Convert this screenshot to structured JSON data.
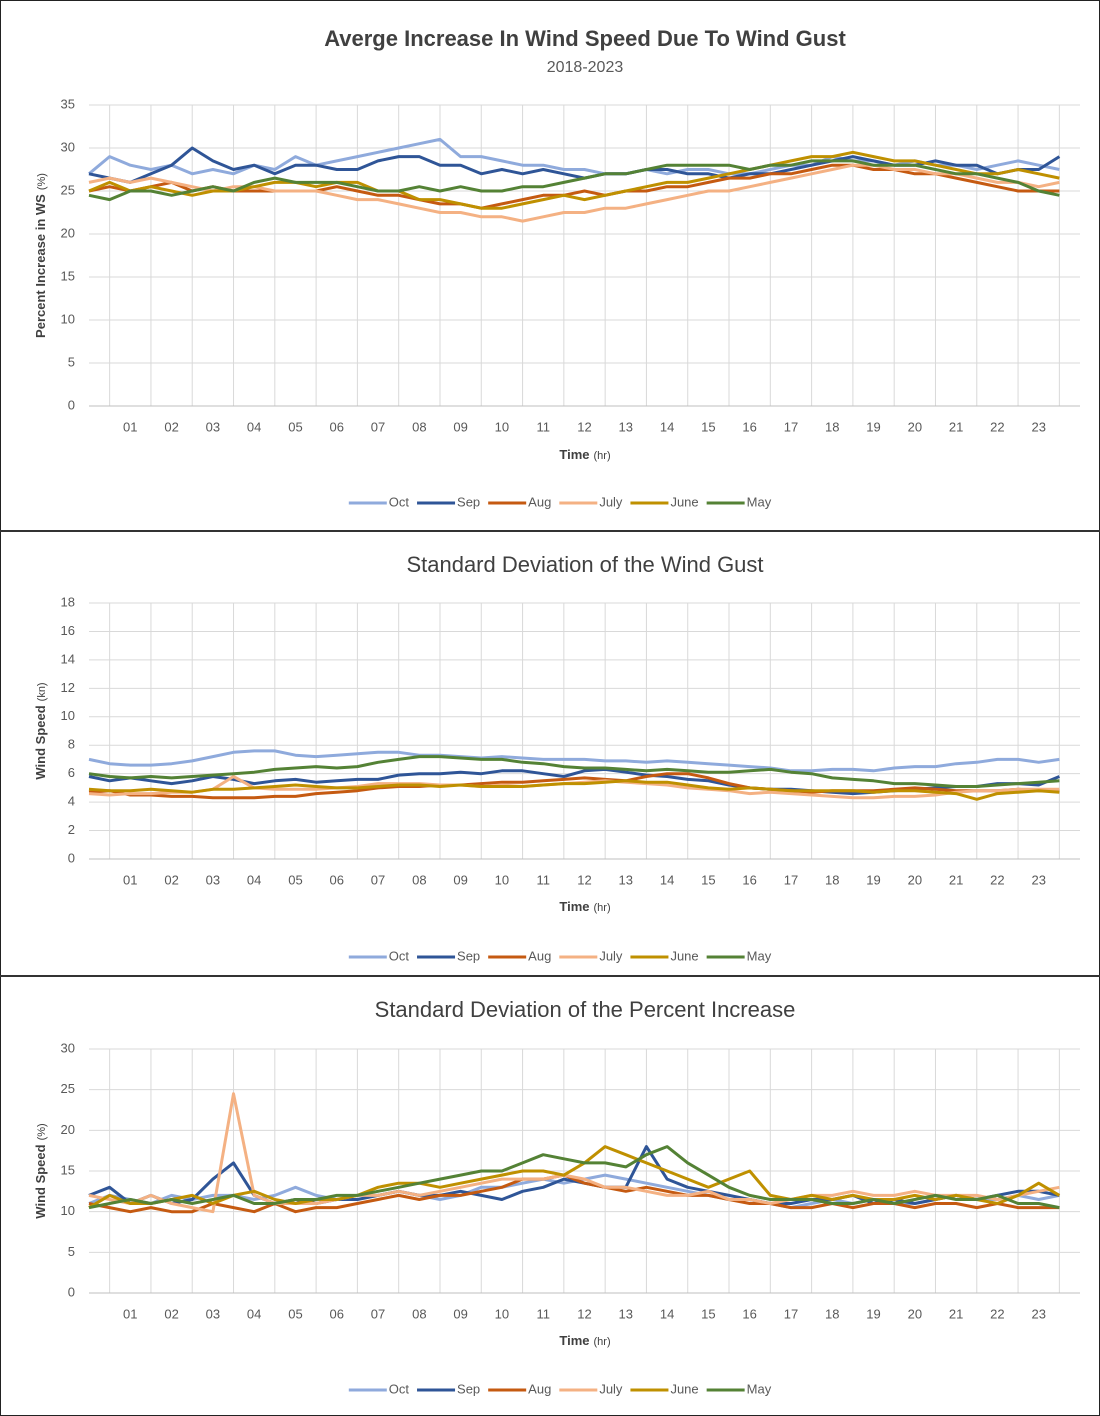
{
  "chart_data": [
    {
      "type": "line",
      "title": "Averge Increase In Wind Speed Due To Wind Gust",
      "subtitle": "2018-2023",
      "x_label": "Time",
      "x_unit": "(hr)",
      "y_label": "Percent Increase in WS",
      "y_unit": "(%)",
      "categories": [
        null,
        null,
        "01",
        null,
        "02",
        null,
        "03",
        null,
        "04",
        null,
        "05",
        null,
        "06",
        null,
        "07",
        null,
        "08",
        null,
        "09",
        null,
        "10",
        null,
        "11",
        null,
        "12",
        null,
        "13",
        null,
        "14",
        null,
        "15",
        null,
        "16",
        null,
        "17",
        null,
        "18",
        null,
        "19",
        null,
        "20",
        null,
        "21",
        null,
        "22",
        null,
        "23",
        null
      ],
      "ylim": [
        0,
        35
      ],
      "yticks": [
        0,
        5,
        10,
        15,
        20,
        25,
        30,
        35
      ],
      "grid": true,
      "legend": "bottom",
      "series": [
        {
          "name": "Oct",
          "color": "#8faadc",
          "values": [
            27,
            29,
            28,
            27.5,
            28,
            27,
            27.5,
            27,
            28,
            27.5,
            29,
            28,
            28.5,
            29,
            29.5,
            30,
            30.5,
            31,
            29,
            29,
            28.5,
            28,
            28,
            27.5,
            27.5,
            27,
            27,
            27.5,
            27,
            27.5,
            27.5,
            27,
            27,
            27.5,
            28,
            28,
            29,
            28.5,
            28.5,
            28,
            28.5,
            28,
            28,
            27.5,
            28,
            28.5,
            28,
            27.5
          ]
        },
        {
          "name": "Sep",
          "color": "#2f5597",
          "values": [
            27,
            26.5,
            26,
            27,
            28,
            30,
            28.5,
            27.5,
            28,
            27,
            28,
            28,
            27.5,
            27.5,
            28.5,
            29,
            29,
            28,
            28,
            27,
            27.5,
            27,
            27.5,
            27,
            26.5,
            27,
            27,
            27.5,
            27.5,
            27,
            27,
            26.5,
            27,
            27,
            27.5,
            28,
            28.5,
            29,
            28.5,
            28,
            28,
            28.5,
            28,
            28,
            27,
            27.5,
            27.5,
            29
          ]
        },
        {
          "name": "Aug",
          "color": "#c55a11",
          "values": [
            25,
            25.5,
            25,
            25.5,
            26,
            25,
            25.5,
            25,
            25,
            25,
            25,
            25,
            25.5,
            25,
            24.5,
            24.5,
            24,
            23.5,
            23.5,
            23,
            23.5,
            24,
            24.5,
            24.5,
            25,
            24.5,
            25,
            25,
            25.5,
            25.5,
            26,
            26.5,
            26.5,
            27,
            27,
            27.5,
            28,
            28,
            27.5,
            27.5,
            27,
            27,
            26.5,
            26,
            25.5,
            25,
            25,
            25
          ]
        },
        {
          "name": "July",
          "color": "#f4b183",
          "values": [
            26,
            26.5,
            26,
            26.5,
            26,
            25.5,
            25,
            25.5,
            25.5,
            25,
            25,
            25,
            24.5,
            24,
            24,
            23.5,
            23,
            22.5,
            22.5,
            22,
            22,
            21.5,
            22,
            22.5,
            22.5,
            23,
            23,
            23.5,
            24,
            24.5,
            25,
            25,
            25.5,
            26,
            26.5,
            27,
            27.5,
            28,
            28,
            27.5,
            27.5,
            27,
            27,
            26.5,
            26,
            26,
            25.5,
            26
          ]
        },
        {
          "name": "June",
          "color": "#bf9000",
          "values": [
            25,
            26,
            25,
            25.5,
            25,
            24.5,
            25,
            25,
            25.5,
            26,
            26,
            25.5,
            26,
            26,
            25,
            25,
            24,
            24,
            23.5,
            23,
            23,
            23.5,
            24,
            24.5,
            24,
            24.5,
            25,
            25.5,
            26,
            26,
            26.5,
            27,
            27.5,
            28,
            28.5,
            29,
            29,
            29.5,
            29,
            28.5,
            28.5,
            28,
            27.5,
            27,
            27,
            27.5,
            27,
            26.5
          ]
        },
        {
          "name": "May",
          "color": "#548235",
          "values": [
            24.5,
            24,
            25,
            25,
            24.5,
            25,
            25.5,
            25,
            26,
            26.5,
            26,
            26,
            26,
            25.5,
            25,
            25,
            25.5,
            25,
            25.5,
            25,
            25,
            25.5,
            25.5,
            26,
            26.5,
            27,
            27,
            27.5,
            28,
            28,
            28,
            28,
            27.5,
            28,
            28,
            28.5,
            28.5,
            28.5,
            28,
            28,
            28,
            27.5,
            27,
            27,
            26.5,
            26,
            25,
            24.5
          ]
        }
      ]
    },
    {
      "type": "line",
      "title": "Standard Deviation of the Wind Gust",
      "x_label": "Time",
      "x_unit": "(hr)",
      "y_label": "Wind Speed",
      "y_unit": "(kn)",
      "categories": [
        null,
        null,
        "01",
        null,
        "02",
        null,
        "03",
        null,
        "04",
        null,
        "05",
        null,
        "06",
        null,
        "07",
        null,
        "08",
        null,
        "09",
        null,
        "10",
        null,
        "11",
        null,
        "12",
        null,
        "13",
        null,
        "14",
        null,
        "15",
        null,
        "16",
        null,
        "17",
        null,
        "18",
        null,
        "19",
        null,
        "20",
        null,
        "21",
        null,
        "22",
        null,
        "23",
        null
      ],
      "ylim": [
        0,
        18
      ],
      "yticks": [
        0,
        2,
        4,
        6,
        8,
        10,
        12,
        14,
        16,
        18
      ],
      "grid": true,
      "legend": "bottom",
      "series": [
        {
          "name": "Oct",
          "color": "#8faadc",
          "values": [
            7,
            6.7,
            6.6,
            6.6,
            6.7,
            6.9,
            7.2,
            7.5,
            7.6,
            7.6,
            7.3,
            7.2,
            7.3,
            7.4,
            7.5,
            7.5,
            7.3,
            7.3,
            7.2,
            7.1,
            7.2,
            7.1,
            7,
            7,
            7,
            6.9,
            6.9,
            6.8,
            6.9,
            6.8,
            6.7,
            6.6,
            6.5,
            6.4,
            6.2,
            6.2,
            6.3,
            6.3,
            6.2,
            6.4,
            6.5,
            6.5,
            6.7,
            6.8,
            7,
            7,
            6.8,
            7
          ]
        },
        {
          "name": "Sep",
          "color": "#2f5597",
          "values": [
            5.8,
            5.5,
            5.7,
            5.5,
            5.3,
            5.5,
            5.8,
            5.6,
            5.3,
            5.5,
            5.6,
            5.4,
            5.5,
            5.6,
            5.6,
            5.9,
            6,
            6,
            6.1,
            6,
            6.2,
            6.2,
            6,
            5.8,
            6.2,
            6.3,
            6.1,
            5.9,
            5.8,
            5.6,
            5.5,
            5.2,
            5,
            4.9,
            4.9,
            4.8,
            4.7,
            4.6,
            4.7,
            4.8,
            4.9,
            5,
            5.1,
            5.1,
            5.3,
            5.3,
            5.2,
            5.8
          ]
        },
        {
          "name": "Aug",
          "color": "#c55a11",
          "values": [
            4.7,
            4.8,
            4.5,
            4.5,
            4.4,
            4.4,
            4.3,
            4.3,
            4.3,
            4.4,
            4.4,
            4.6,
            4.7,
            4.8,
            5,
            5.1,
            5.1,
            5.2,
            5.2,
            5.3,
            5.4,
            5.4,
            5.5,
            5.6,
            5.7,
            5.6,
            5.5,
            5.8,
            6,
            6,
            5.7,
            5.3,
            5,
            4.9,
            4.8,
            4.7,
            4.8,
            4.8,
            4.8,
            4.9,
            5,
            4.9,
            4.8,
            4.8,
            4.8,
            4.9,
            4.8,
            4.8
          ]
        },
        {
          "name": "July",
          "color": "#f4b183",
          "values": [
            4.6,
            4.5,
            4.6,
            4.6,
            4.7,
            4.7,
            4.9,
            5.8,
            5,
            4.9,
            4.9,
            4.9,
            5,
            5.1,
            5.3,
            5.3,
            5.3,
            5.2,
            5.2,
            5.1,
            5.2,
            5.1,
            5.2,
            5.3,
            5.4,
            5.5,
            5.4,
            5.3,
            5.2,
            5,
            4.9,
            4.8,
            4.6,
            4.7,
            4.6,
            4.5,
            4.4,
            4.3,
            4.3,
            4.4,
            4.4,
            4.5,
            4.7,
            4.8,
            4.8,
            4.9,
            4.9,
            4.9
          ]
        },
        {
          "name": "June",
          "color": "#bf9000",
          "values": [
            4.9,
            4.8,
            4.8,
            4.9,
            4.8,
            4.7,
            4.9,
            4.9,
            5,
            5.1,
            5.2,
            5.1,
            5,
            5,
            5.1,
            5.2,
            5.2,
            5.1,
            5.2,
            5.1,
            5.1,
            5.1,
            5.2,
            5.3,
            5.3,
            5.4,
            5.5,
            5.4,
            5.4,
            5.2,
            5,
            4.9,
            5,
            4.9,
            4.8,
            4.8,
            4.8,
            4.8,
            4.7,
            4.8,
            4.8,
            4.7,
            4.6,
            4.2,
            4.6,
            4.7,
            4.8,
            4.7
          ]
        },
        {
          "name": "May",
          "color": "#548235",
          "values": [
            6,
            5.8,
            5.7,
            5.8,
            5.7,
            5.8,
            5.9,
            6,
            6.1,
            6.3,
            6.4,
            6.5,
            6.4,
            6.5,
            6.8,
            7,
            7.2,
            7.2,
            7.1,
            7,
            7,
            6.8,
            6.7,
            6.5,
            6.4,
            6.4,
            6.3,
            6.2,
            6.3,
            6.2,
            6.1,
            6.1,
            6.2,
            6.3,
            6.1,
            6,
            5.7,
            5.6,
            5.5,
            5.3,
            5.3,
            5.2,
            5.1,
            5.1,
            5.2,
            5.3,
            5.4,
            5.5
          ]
        }
      ]
    },
    {
      "type": "line",
      "title": "Standard Deviation of the Percent Increase",
      "x_label": "Time",
      "x_unit": "(hr)",
      "y_label": "Wind Speed",
      "y_unit": "(%)",
      "categories": [
        null,
        null,
        "01",
        null,
        "02",
        null,
        "03",
        null,
        "04",
        null,
        "05",
        null,
        "06",
        null,
        "07",
        null,
        "08",
        null,
        "09",
        null,
        "10",
        null,
        "11",
        null,
        "12",
        null,
        "13",
        null,
        "14",
        null,
        "15",
        null,
        "16",
        null,
        "17",
        null,
        "18",
        null,
        "19",
        null,
        "20",
        null,
        "21",
        null,
        "22",
        null,
        "23",
        null
      ],
      "ylim": [
        0,
        30
      ],
      "yticks": [
        0,
        5,
        10,
        15,
        20,
        25,
        30
      ],
      "grid": true,
      "legend": "bottom",
      "series": [
        {
          "name": "Oct",
          "color": "#8faadc",
          "values": [
            11,
            12,
            11.5,
            11,
            12,
            11.5,
            12,
            12,
            11.5,
            12,
            13,
            12,
            11.5,
            12,
            12,
            12.5,
            12,
            11.5,
            12,
            13,
            13,
            13.5,
            14,
            13.5,
            14,
            14.5,
            14,
            13.5,
            13,
            12.5,
            12,
            11.5,
            11.5,
            11,
            10.5,
            11,
            11.5,
            11,
            11.5,
            11,
            11,
            11.5,
            12,
            11.5,
            11.5,
            12,
            11.5,
            12
          ]
        },
        {
          "name": "Sep",
          "color": "#2f5597",
          "values": [
            12,
            13,
            11,
            12,
            11,
            11.5,
            14,
            16,
            12,
            11,
            11.5,
            11,
            11.5,
            11.5,
            12,
            12.5,
            12,
            12,
            12.5,
            12,
            11.5,
            12.5,
            13,
            14,
            13.5,
            13,
            13,
            18,
            14,
            13,
            12.5,
            12,
            11.5,
            11,
            11,
            11.5,
            11.5,
            12,
            11,
            11.5,
            11,
            11.5,
            12,
            11.5,
            12,
            12.5,
            12.5,
            12
          ]
        },
        {
          "name": "Aug",
          "color": "#c55a11",
          "values": [
            11,
            10.5,
            10,
            10.5,
            10,
            10,
            11,
            10.5,
            10,
            11,
            10,
            10.5,
            10.5,
            11,
            11.5,
            12,
            11.5,
            12,
            12,
            12.5,
            13,
            14,
            14,
            14.5,
            13.5,
            13,
            12.5,
            13,
            12.5,
            12,
            12,
            11.5,
            11,
            11,
            10.5,
            10.5,
            11,
            10.5,
            11,
            11,
            10.5,
            11,
            11,
            10.5,
            11,
            10.5,
            10.5,
            10.5
          ]
        },
        {
          "name": "July",
          "color": "#f4b183",
          "values": [
            12,
            11.5,
            11,
            12,
            11,
            10.5,
            10,
            24.5,
            12,
            11,
            11,
            11,
            11.5,
            12,
            12,
            12.5,
            12,
            12.5,
            13,
            13.5,
            14,
            14,
            14,
            14.5,
            14,
            13,
            13,
            12.5,
            12,
            12,
            12.5,
            11.5,
            11.5,
            11,
            11.5,
            12,
            12,
            12.5,
            12,
            12,
            12.5,
            12,
            12,
            12,
            11.5,
            12,
            12.5,
            13
          ]
        },
        {
          "name": "June",
          "color": "#bf9000",
          "values": [
            10.5,
            12,
            11,
            11,
            11.5,
            12,
            11,
            12,
            12.5,
            11.5,
            11,
            11.5,
            11.5,
            12,
            13,
            13.5,
            13.5,
            13,
            13.5,
            14,
            14.5,
            15,
            15,
            14.5,
            16,
            18,
            17,
            16,
            15,
            14,
            13,
            14,
            15,
            12,
            11.5,
            12,
            11.5,
            12,
            11.5,
            11.5,
            12,
            11.5,
            12,
            11.5,
            11,
            12,
            13.5,
            12
          ]
        },
        {
          "name": "May",
          "color": "#548235",
          "values": [
            10.5,
            11,
            11.5,
            11,
            11.5,
            11,
            11.5,
            12,
            11,
            11,
            11.5,
            11.5,
            12,
            12,
            12.5,
            13,
            13.5,
            14,
            14.5,
            15,
            15,
            16,
            17,
            16.5,
            16,
            16,
            15.5,
            17,
            18,
            16,
            14.5,
            13,
            12,
            11.5,
            11.5,
            11.5,
            11,
            11,
            11.5,
            11,
            11.5,
            12,
            11.5,
            11.5,
            12,
            11,
            11,
            10.5
          ]
        }
      ]
    }
  ]
}
